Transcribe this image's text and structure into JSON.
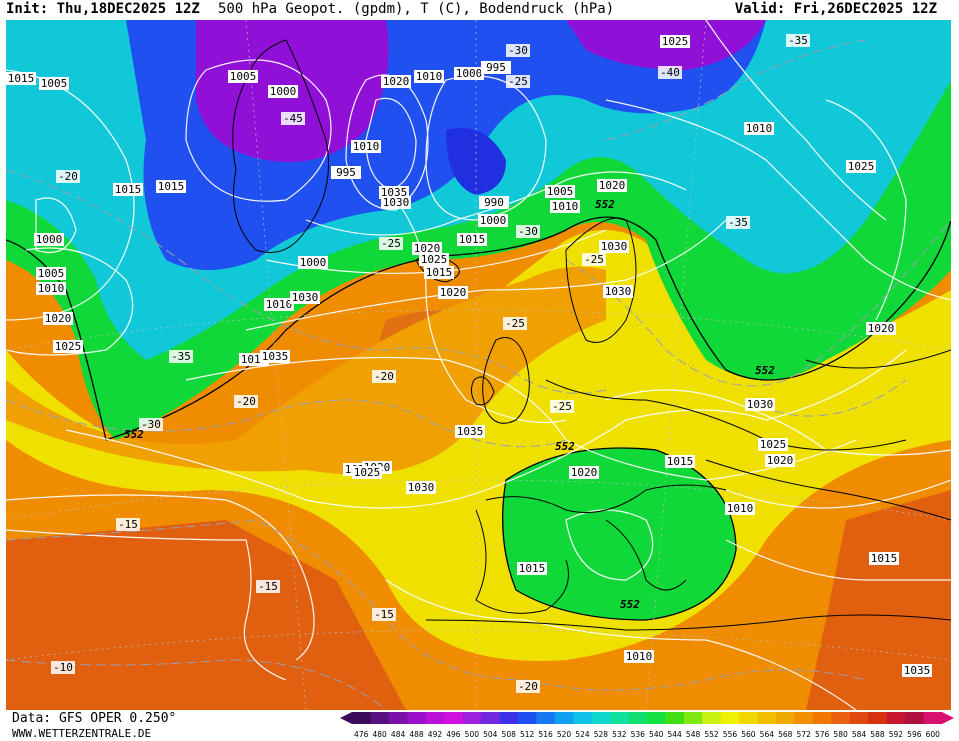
{
  "header": {
    "init": "Init: Thu,18DEC2025 12Z",
    "title": "500 hPa Geopot. (gpdm), T (C), Bodendruck (hPa)",
    "valid": "Valid: Fri,26DEC2025 12Z"
  },
  "footer": {
    "source": "Data: GFS OPER 0.250°",
    "site": "WWW.WETTERZENTRALE.DE"
  },
  "colors": {
    "ocean_band": "#f0a000",
    "deep_low": "#9010d8",
    "blue_low": "#2040f0",
    "cyan": "#10c8d8",
    "green": "#10d838",
    "yellow": "#f0e800",
    "orange": "#f08c00",
    "dark_orange": "#e06010"
  },
  "colorbar": {
    "values": [
      "476",
      "480",
      "484",
      "488",
      "492",
      "496",
      "500",
      "504",
      "508",
      "512",
      "516",
      "520",
      "524",
      "528",
      "532",
      "536",
      "540",
      "544",
      "548",
      "552",
      "556",
      "560",
      "564",
      "568",
      "572",
      "576",
      "580",
      "584",
      "588",
      "592",
      "596",
      "600"
    ],
    "colors": [
      "#3b0a5a",
      "#5a0f80",
      "#7a10a8",
      "#9a10c8",
      "#b810d8",
      "#d010e0",
      "#a020e0",
      "#7028e0",
      "#3c30e8",
      "#2050f0",
      "#1878f0",
      "#10a0f0",
      "#10c0e8",
      "#10d8d0",
      "#10e0a0",
      "#10e070",
      "#10e040",
      "#40e010",
      "#80e810",
      "#c8f010",
      "#f0f000",
      "#f0d800",
      "#f0c000",
      "#f0a800",
      "#f09000",
      "#f07800",
      "#e86010",
      "#e04810",
      "#d83010",
      "#c81830",
      "#b01040",
      "#d81070"
    ]
  },
  "pressure_labels": [
    "1015",
    "1005",
    "1000",
    "1015",
    "1020",
    "1010",
    "1000",
    "995",
    "1010",
    "995",
    "1035",
    "1030",
    "990",
    "1000",
    "1005",
    "1010",
    "1020",
    "1025",
    "1030",
    "1015",
    "1020",
    "1025",
    "1015",
    "1020",
    "1030",
    "1010",
    "1035",
    "1000",
    "1005",
    "1010",
    "1020",
    "1025",
    "1015",
    "1030",
    "1035",
    "1025",
    "1020",
    "1025",
    "1030",
    "1020",
    "1015",
    "1010",
    "1015",
    "1010",
    "1015",
    "1025",
    "1020",
    "1030",
    "1035",
    "1005",
    "1010",
    "1015",
    "1020",
    "1025",
    "1000"
  ],
  "temp_labels": [
    "-20",
    "-25",
    "-30",
    "-35",
    "-40",
    "-45",
    "-25",
    "-30",
    "-35",
    "-25",
    "-20",
    "-15",
    "-10",
    "-15",
    "-20",
    "-25",
    "-30",
    "-35",
    "-15",
    "-20",
    "-25"
  ],
  "geopot_labels": [
    "552",
    "552",
    "552",
    "552",
    "552"
  ]
}
